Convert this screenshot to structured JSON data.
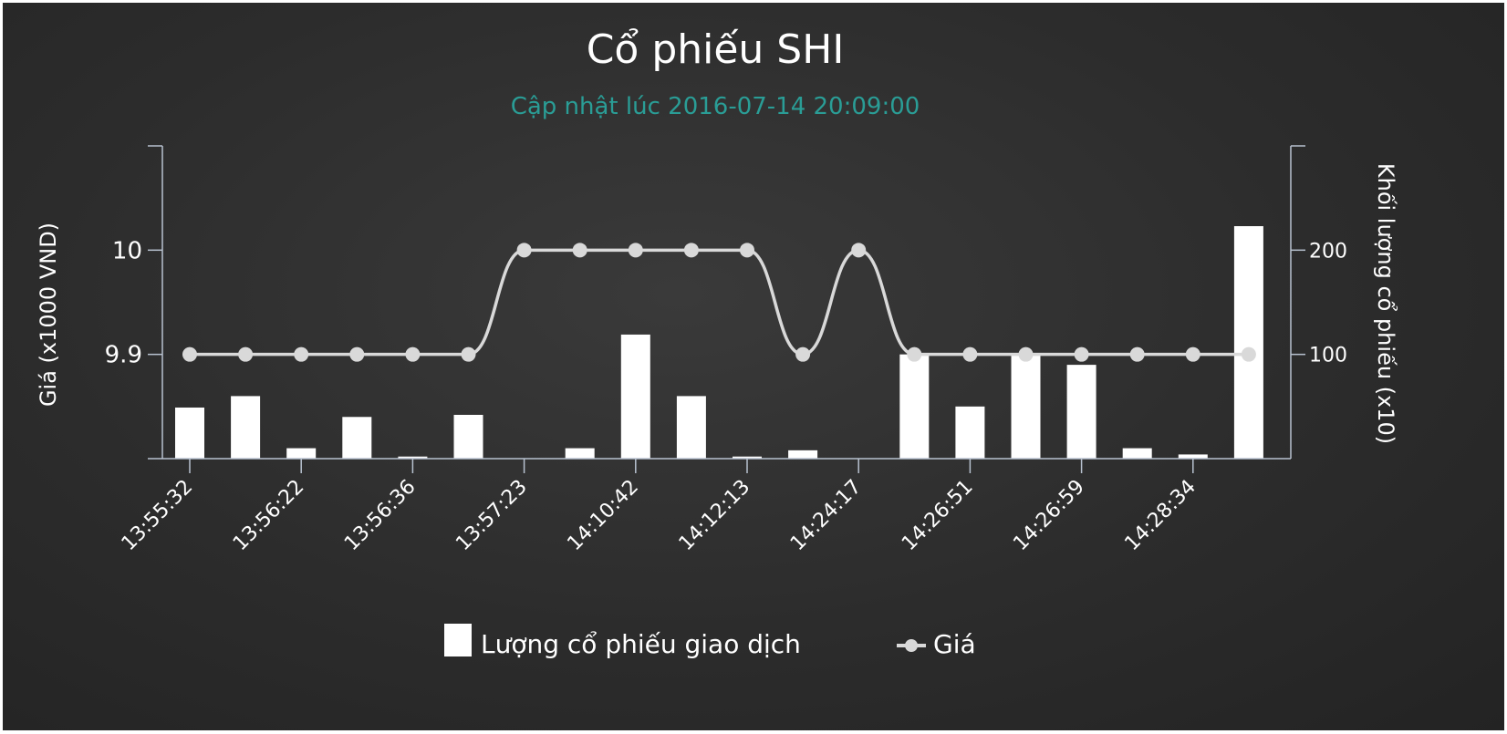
{
  "colors": {
    "background": "#2e2e2e",
    "title": "#ffffff",
    "subtitle": "#2a9d96",
    "bars": "#ffffff",
    "line": "#d9d9d9",
    "axis": "#b8c2d0"
  },
  "chart_data": {
    "type": "bar+line",
    "title": "Cổ phiếu SHI",
    "subtitle": "Cập nhật lúc 2016-07-14 20:09:00",
    "ylabel_left": "Giá (x1000 VND)",
    "ylabel_right": "Khối lượng cổ phiếu (x10)",
    "y_left_ticks": [
      "10",
      "9.9"
    ],
    "y_left_range": [
      9.8,
      10.1
    ],
    "y_right_ticks": [
      "200",
      "100"
    ],
    "y_right_range": [
      0,
      300
    ],
    "x_tick_labels": [
      "13:55:32",
      "13:56:22",
      "13:56:36",
      "13:57:23",
      "14:10:42",
      "14:12:13",
      "14:24:17",
      "14:26:51",
      "14:26:59",
      "14:28:34"
    ],
    "x_count": 20,
    "legend": {
      "bars_label": "Lượng cổ phiếu giao dịch",
      "line_label": "Giá"
    },
    "series": [
      {
        "name": "Lượng cổ phiếu giao dịch",
        "type": "bar",
        "axis": "right",
        "values": [
          49,
          60,
          10,
          40,
          2,
          42,
          0,
          10,
          119,
          60,
          2,
          8,
          0,
          100,
          50,
          100,
          90,
          10,
          4,
          223
        ]
      },
      {
        "name": "Giá",
        "type": "line",
        "axis": "left",
        "values": [
          9.9,
          9.9,
          9.9,
          9.9,
          9.9,
          9.9,
          10.0,
          10.0,
          10.0,
          10.0,
          10.0,
          9.9,
          10.0,
          9.9,
          9.9,
          9.9,
          9.9,
          9.9,
          9.9,
          9.9
        ]
      }
    ]
  }
}
